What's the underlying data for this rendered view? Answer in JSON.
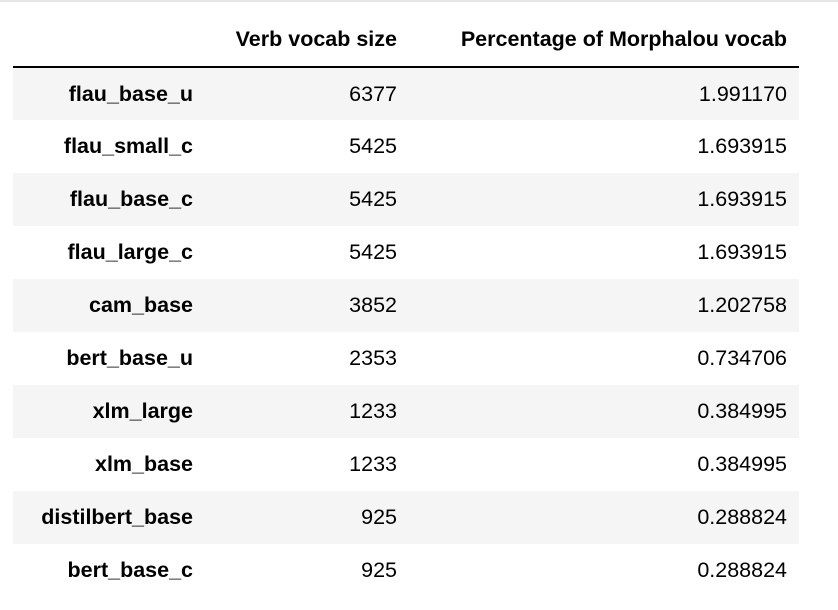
{
  "table": {
    "columns": [
      "",
      "Verb vocab size",
      "Percentage of Morphalou vocab"
    ],
    "rows": [
      {
        "index": "flau_base_u",
        "verb_vocab_size": "6377",
        "percentage": "1.991170"
      },
      {
        "index": "flau_small_c",
        "verb_vocab_size": "5425",
        "percentage": "1.693915"
      },
      {
        "index": "flau_base_c",
        "verb_vocab_size": "5425",
        "percentage": "1.693915"
      },
      {
        "index": "flau_large_c",
        "verb_vocab_size": "5425",
        "percentage": "1.693915"
      },
      {
        "index": "cam_base",
        "verb_vocab_size": "3852",
        "percentage": "1.202758"
      },
      {
        "index": "bert_base_u",
        "verb_vocab_size": "2353",
        "percentage": "0.734706"
      },
      {
        "index": "xlm_large",
        "verb_vocab_size": "1233",
        "percentage": "0.384995"
      },
      {
        "index": "xlm_base",
        "verb_vocab_size": "1233",
        "percentage": "0.384995"
      },
      {
        "index": "distilbert_base",
        "verb_vocab_size": "925",
        "percentage": "0.288824"
      },
      {
        "index": "bert_base_c",
        "verb_vocab_size": "925",
        "percentage": "0.288824"
      }
    ]
  }
}
